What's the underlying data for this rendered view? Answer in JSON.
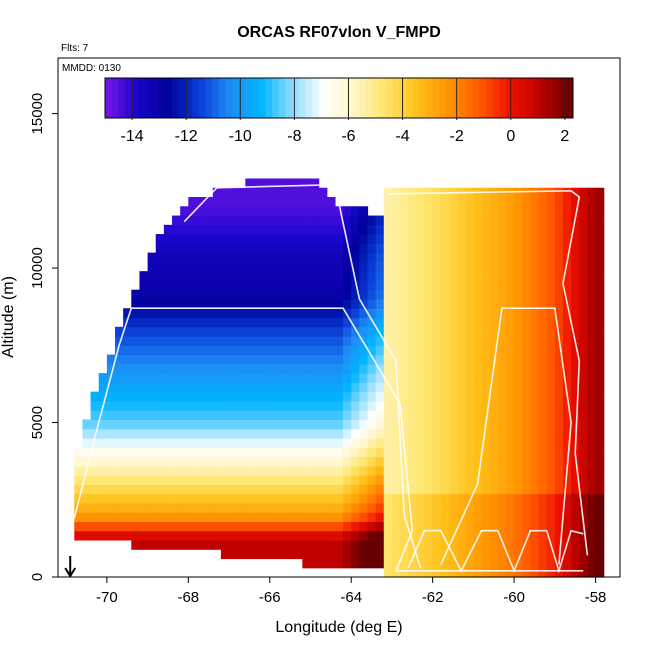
{
  "chart_data": {
    "type": "heatmap",
    "title": "ORCAS RF07vlon V_FMPD",
    "flights_note": "Flts: 7",
    "date_note": "MMDD: 0130",
    "xlabel": "Longitude (deg E)",
    "ylabel": "Altitude (m)",
    "xlim": [
      -71.2,
      -57.4
    ],
    "ylim": [
      0,
      16800
    ],
    "x_ticks": [
      -70,
      -68,
      -66,
      -64,
      -62,
      -60,
      -58
    ],
    "x_tick_labels": [
      "-70",
      "-68",
      "-66",
      "-64",
      "-62",
      "-60",
      "-58"
    ],
    "y_ticks": [
      0,
      5000,
      10000,
      15000
    ],
    "y_tick_labels": [
      "0",
      "5000",
      "10000",
      "15000"
    ],
    "colorbar": {
      "range": [
        -15,
        2.3
      ],
      "ticks": [
        -14,
        -12,
        -10,
        -8,
        -6,
        -4,
        -2,
        0,
        2
      ],
      "tick_labels": [
        "-14",
        "-12",
        "-10",
        "-8",
        "-6",
        "-4",
        "-2",
        "0",
        "2"
      ],
      "colors": [
        "#7a16e8",
        "#1a06cc",
        "#00009a",
        "#0a3bd6",
        "#1e8cf4",
        "#00b4ff",
        "#8fdcff",
        "#ffffff",
        "#fff6c4",
        "#ffe56a",
        "#ffc11a",
        "#ff9400",
        "#ff5a00",
        "#ee1100",
        "#b80000",
        "#660000"
      ]
    },
    "west_block": {
      "lon_range": [
        -70.8,
        -63.2
      ],
      "alt_top_profile": [
        [
          -70.8,
          3600
        ],
        [
          -70.4,
          5500
        ],
        [
          -69.8,
          7500
        ],
        [
          -69.4,
          8900
        ],
        [
          -68.8,
          10600
        ],
        [
          -68.3,
          11600
        ],
        [
          -67.8,
          12200
        ],
        [
          -66.2,
          12700
        ],
        [
          -64.7,
          12600
        ],
        [
          -64.4,
          12000
        ],
        [
          -63.2,
          11600
        ]
      ],
      "alt_bottom_profile": [
        [
          -70.8,
          1500
        ],
        [
          -69.4,
          1200
        ],
        [
          -67.8,
          1000
        ],
        [
          -66,
          700
        ],
        [
          -64.5,
          500
        ],
        [
          -63.2,
          300
        ]
      ],
      "value_by_altitude": [
        [
          1200,
          1.0
        ],
        [
          2000,
          -2.5
        ],
        [
          3000,
          -4.5
        ],
        [
          4000,
          -6.5
        ],
        [
          5000,
          -8.5
        ],
        [
          6500,
          -10
        ],
        [
          8000,
          -11.5
        ],
        [
          9000,
          -13
        ],
        [
          10500,
          -13.5
        ],
        [
          12000,
          -14.5
        ]
      ]
    },
    "east_block": {
      "lon_range": [
        -63.2,
        -57.9
      ],
      "alt_range": [
        0,
        12500
      ],
      "value_by_longitude": [
        [
          -63.2,
          -5.5
        ],
        [
          -62.0,
          -4.5
        ],
        [
          -61.0,
          -3.5
        ],
        [
          -60.0,
          -2.5
        ],
        [
          -59.0,
          -1.0
        ],
        [
          -58.0,
          1.5
        ]
      ]
    },
    "flight_tracks": [
      [
        [
          -70.8,
          1900
        ],
        [
          -70.3,
          4500
        ],
        [
          -69.7,
          7500
        ],
        [
          -69.4,
          8700
        ],
        [
          -64.2,
          8700
        ],
        [
          -62.8,
          5600
        ],
        [
          -62.5,
          1500
        ],
        [
          -62.9,
          200
        ],
        [
          -58.3,
          200
        ]
      ],
      [
        [
          -68.1,
          11500
        ],
        [
          -67.3,
          12600
        ],
        [
          -64.4,
          12700
        ],
        [
          -63.8,
          9000
        ],
        [
          -62.9,
          7000
        ],
        [
          -62.7,
          2000
        ],
        [
          -62.3,
          300
        ]
      ],
      [
        [
          -63.1,
          12400
        ],
        [
          -58.6,
          12500
        ],
        [
          -58.4,
          12300
        ],
        [
          -58.8,
          9500
        ],
        [
          -58.4,
          7000
        ],
        [
          -58.5,
          4000
        ],
        [
          -58.2,
          700
        ]
      ],
      [
        [
          -61.8,
          400
        ],
        [
          -60.9,
          3000
        ],
        [
          -60.3,
          8700
        ],
        [
          -59.0,
          8700
        ],
        [
          -58.6,
          5000
        ],
        [
          -58.9,
          400
        ]
      ],
      [
        [
          -62.6,
          300
        ],
        [
          -62.2,
          1500
        ],
        [
          -61.8,
          1500
        ],
        [
          -61.3,
          200
        ],
        [
          -60.8,
          1500
        ],
        [
          -60.4,
          1500
        ],
        [
          -60.0,
          200
        ],
        [
          -59.6,
          1500
        ],
        [
          -59.2,
          1500
        ],
        [
          -58.9,
          200
        ],
        [
          -58.6,
          1500
        ],
        [
          -58.3,
          1400
        ]
      ]
    ],
    "marker": {
      "type": "arrow-down",
      "lon": -70.9
    }
  }
}
